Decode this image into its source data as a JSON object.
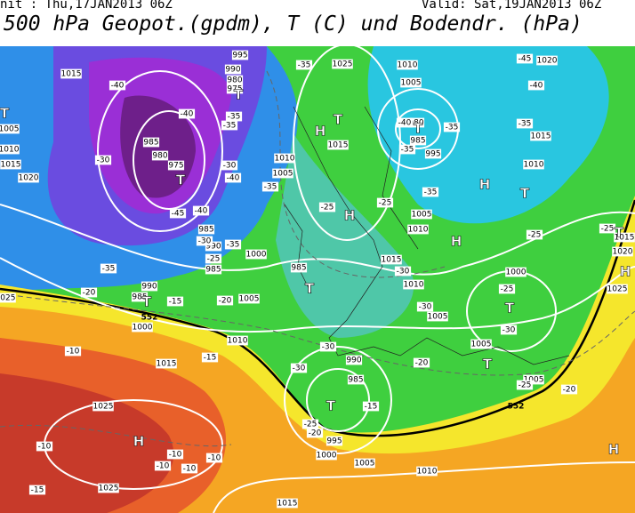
{
  "header": {
    "init": "nit : Thu,17JAN2013 06Z",
    "valid": "Valid: Sat,19JAN2013 06Z",
    "title": "500 hPa Geopot.(gpdm), T (C) und Bodendr. (hPa)"
  },
  "map": {
    "isobar_labels": [
      "1015",
      "995",
      "990",
      "980",
      "975",
      "1025",
      "1010",
      "1005",
      "1020",
      "1005",
      "1010",
      "1015",
      "1020",
      "985",
      "980",
      "975",
      "1010",
      "1005",
      "1015",
      "980",
      "985",
      "995",
      "1010",
      "1015",
      "1005",
      "1010",
      "985",
      "990",
      "985",
      "1000",
      "985",
      "1015",
      "1010",
      "1000",
      "1025",
      "1025",
      "990",
      "985",
      "1000",
      "1005",
      "1005",
      "1010",
      "1015",
      "990",
      "985",
      "1005",
      "1005",
      "1025",
      "995",
      "1000",
      "1005",
      "1010",
      "1025",
      "1015",
      "1020",
      "1015"
    ],
    "temperature_labels": [
      "-45",
      "-35",
      "-40",
      "-40",
      "-35",
      "-35",
      "-40",
      "-35",
      "-35",
      "-40",
      "-30",
      "-35",
      "-30",
      "-40",
      "-45",
      "-40",
      "-30",
      "-35",
      "-35",
      "-25",
      "-25",
      "-35",
      "-25",
      "-25",
      "-35",
      "-20",
      "-25",
      "-15",
      "-20",
      "-30",
      "-30",
      "-25",
      "-30",
      "-30",
      "-20",
      "-15",
      "-30",
      "-15",
      "-20",
      "-25",
      "-20",
      "-25",
      "-10",
      "-10",
      "-10",
      "-10",
      "-10",
      "-10",
      "-15"
    ],
    "pressure_centers": [
      "T",
      "H",
      "T",
      "T",
      "H",
      "T",
      "T",
      "H",
      "H",
      "T",
      "T",
      "T",
      "H",
      "T",
      "T",
      "T",
      "H",
      "H",
      "T"
    ],
    "geopotential_labels": [
      "552",
      "552"
    ]
  }
}
